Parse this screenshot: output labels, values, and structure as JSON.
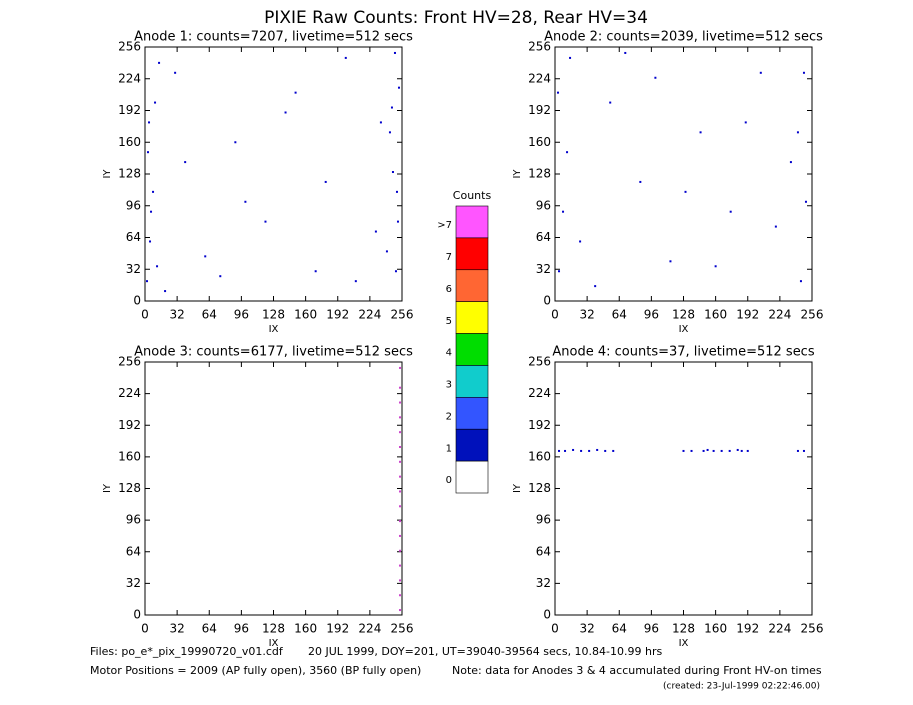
{
  "title": "PIXIE Raw Counts:  Front HV=28, Rear HV=34",
  "chart_data": [
    {
      "type": "scatter",
      "title": "Anode 1: counts=7207, livetime=512 secs",
      "xlabel": "IX",
      "ylabel": "IY",
      "xlim": [
        0,
        256
      ],
      "ylim": [
        0,
        256
      ],
      "xticks": [
        0,
        32,
        64,
        96,
        128,
        160,
        192,
        224,
        256
      ],
      "yticks": [
        0,
        32,
        64,
        96,
        128,
        160,
        192,
        224,
        256
      ],
      "color": "#0000cc",
      "x": [
        2,
        5,
        8,
        3,
        10,
        14,
        6,
        4,
        12,
        250,
        252,
        247,
        244,
        253,
        249,
        241,
        251,
        246,
        30,
        60,
        90,
        120,
        150,
        180,
        210,
        40,
        100,
        170,
        200,
        230,
        20,
        235,
        75,
        140
      ],
      "values": [
        20,
        60,
        110,
        150,
        200,
        240,
        90,
        180,
        35,
        30,
        80,
        130,
        170,
        215,
        250,
        50,
        110,
        195,
        230,
        45,
        160,
        80,
        210,
        120,
        20,
        140,
        100,
        30,
        245,
        70,
        10,
        180,
        25,
        190
      ]
    },
    {
      "type": "scatter",
      "title": "Anode 2: counts=2039, livetime=512 secs",
      "xlabel": "IX",
      "ylabel": "IY",
      "xlim": [
        0,
        256
      ],
      "ylim": [
        0,
        256
      ],
      "xticks": [
        0,
        32,
        64,
        96,
        128,
        160,
        192,
        224,
        256
      ],
      "yticks": [
        0,
        32,
        64,
        96,
        128,
        160,
        192,
        224,
        256
      ],
      "color": "#0000cc",
      "x": [
        4,
        8,
        12,
        3,
        15,
        245,
        250,
        242,
        248,
        25,
        55,
        85,
        115,
        145,
        175,
        205,
        235,
        40,
        70,
        130,
        160,
        190,
        220,
        100
      ],
      "values": [
        30,
        90,
        150,
        210,
        245,
        20,
        100,
        170,
        230,
        60,
        200,
        120,
        40,
        170,
        90,
        230,
        140,
        15,
        250,
        110,
        35,
        180,
        75,
        225
      ]
    },
    {
      "type": "scatter",
      "title": "Anode 3: counts=6177, livetime=512 secs",
      "xlabel": "IX",
      "ylabel": "IY",
      "xlim": [
        0,
        256
      ],
      "ylim": [
        0,
        256
      ],
      "xticks": [
        0,
        32,
        64,
        96,
        128,
        160,
        192,
        224,
        256
      ],
      "yticks": [
        0,
        32,
        64,
        96,
        128,
        160,
        192,
        224,
        256
      ],
      "color": "#cc44cc",
      "x": [
        254,
        254,
        254,
        254,
        254,
        254,
        254,
        254,
        254,
        254,
        254,
        254,
        254,
        254,
        254,
        254,
        254
      ],
      "values": [
        5,
        20,
        35,
        50,
        65,
        80,
        95,
        110,
        125,
        140,
        155,
        170,
        185,
        200,
        215,
        230,
        250
      ]
    },
    {
      "type": "scatter",
      "title": "Anode 4: counts=37, livetime=512 secs",
      "xlabel": "IX",
      "ylabel": "IY",
      "xlim": [
        0,
        256
      ],
      "ylim": [
        0,
        256
      ],
      "xticks": [
        0,
        32,
        64,
        96,
        128,
        160,
        192,
        224,
        256
      ],
      "yticks": [
        0,
        32,
        64,
        96,
        128,
        160,
        192,
        224,
        256
      ],
      "color": "#0000cc",
      "x": [
        4,
        10,
        18,
        26,
        34,
        42,
        50,
        58,
        128,
        136,
        148,
        152,
        158,
        166,
        174,
        182,
        186,
        192,
        242,
        248
      ],
      "values": [
        166,
        166,
        167,
        166,
        166,
        167,
        166,
        166,
        166,
        166,
        166,
        167,
        166,
        166,
        166,
        167,
        166,
        166,
        166,
        166
      ]
    }
  ],
  "colorbar": {
    "title": "Counts",
    "labels": [
      ">7",
      "7",
      "6",
      "5",
      "4",
      "3",
      "2",
      "1",
      "0"
    ],
    "colors": [
      "#ff55ff",
      "#ff0000",
      "#ff6633",
      "#ffff00",
      "#00dd00",
      "#11cccc",
      "#3355ff",
      "#0011bb",
      "#ffffff"
    ]
  },
  "footer": {
    "files": "Files: po_e*_pix_19990720_v01.cdf",
    "date": "20 JUL 1999, DOY=201, UT=39040-39564 secs, 10.84-10.99 hrs",
    "motor": "Motor Positions = 2009 (AP fully open), 3560 (BP fully open)",
    "note": "Note: data for Anodes 3 & 4 accumulated during Front HV-on times",
    "created": "(created: 23-Jul-1999 02:22:46.00)"
  }
}
